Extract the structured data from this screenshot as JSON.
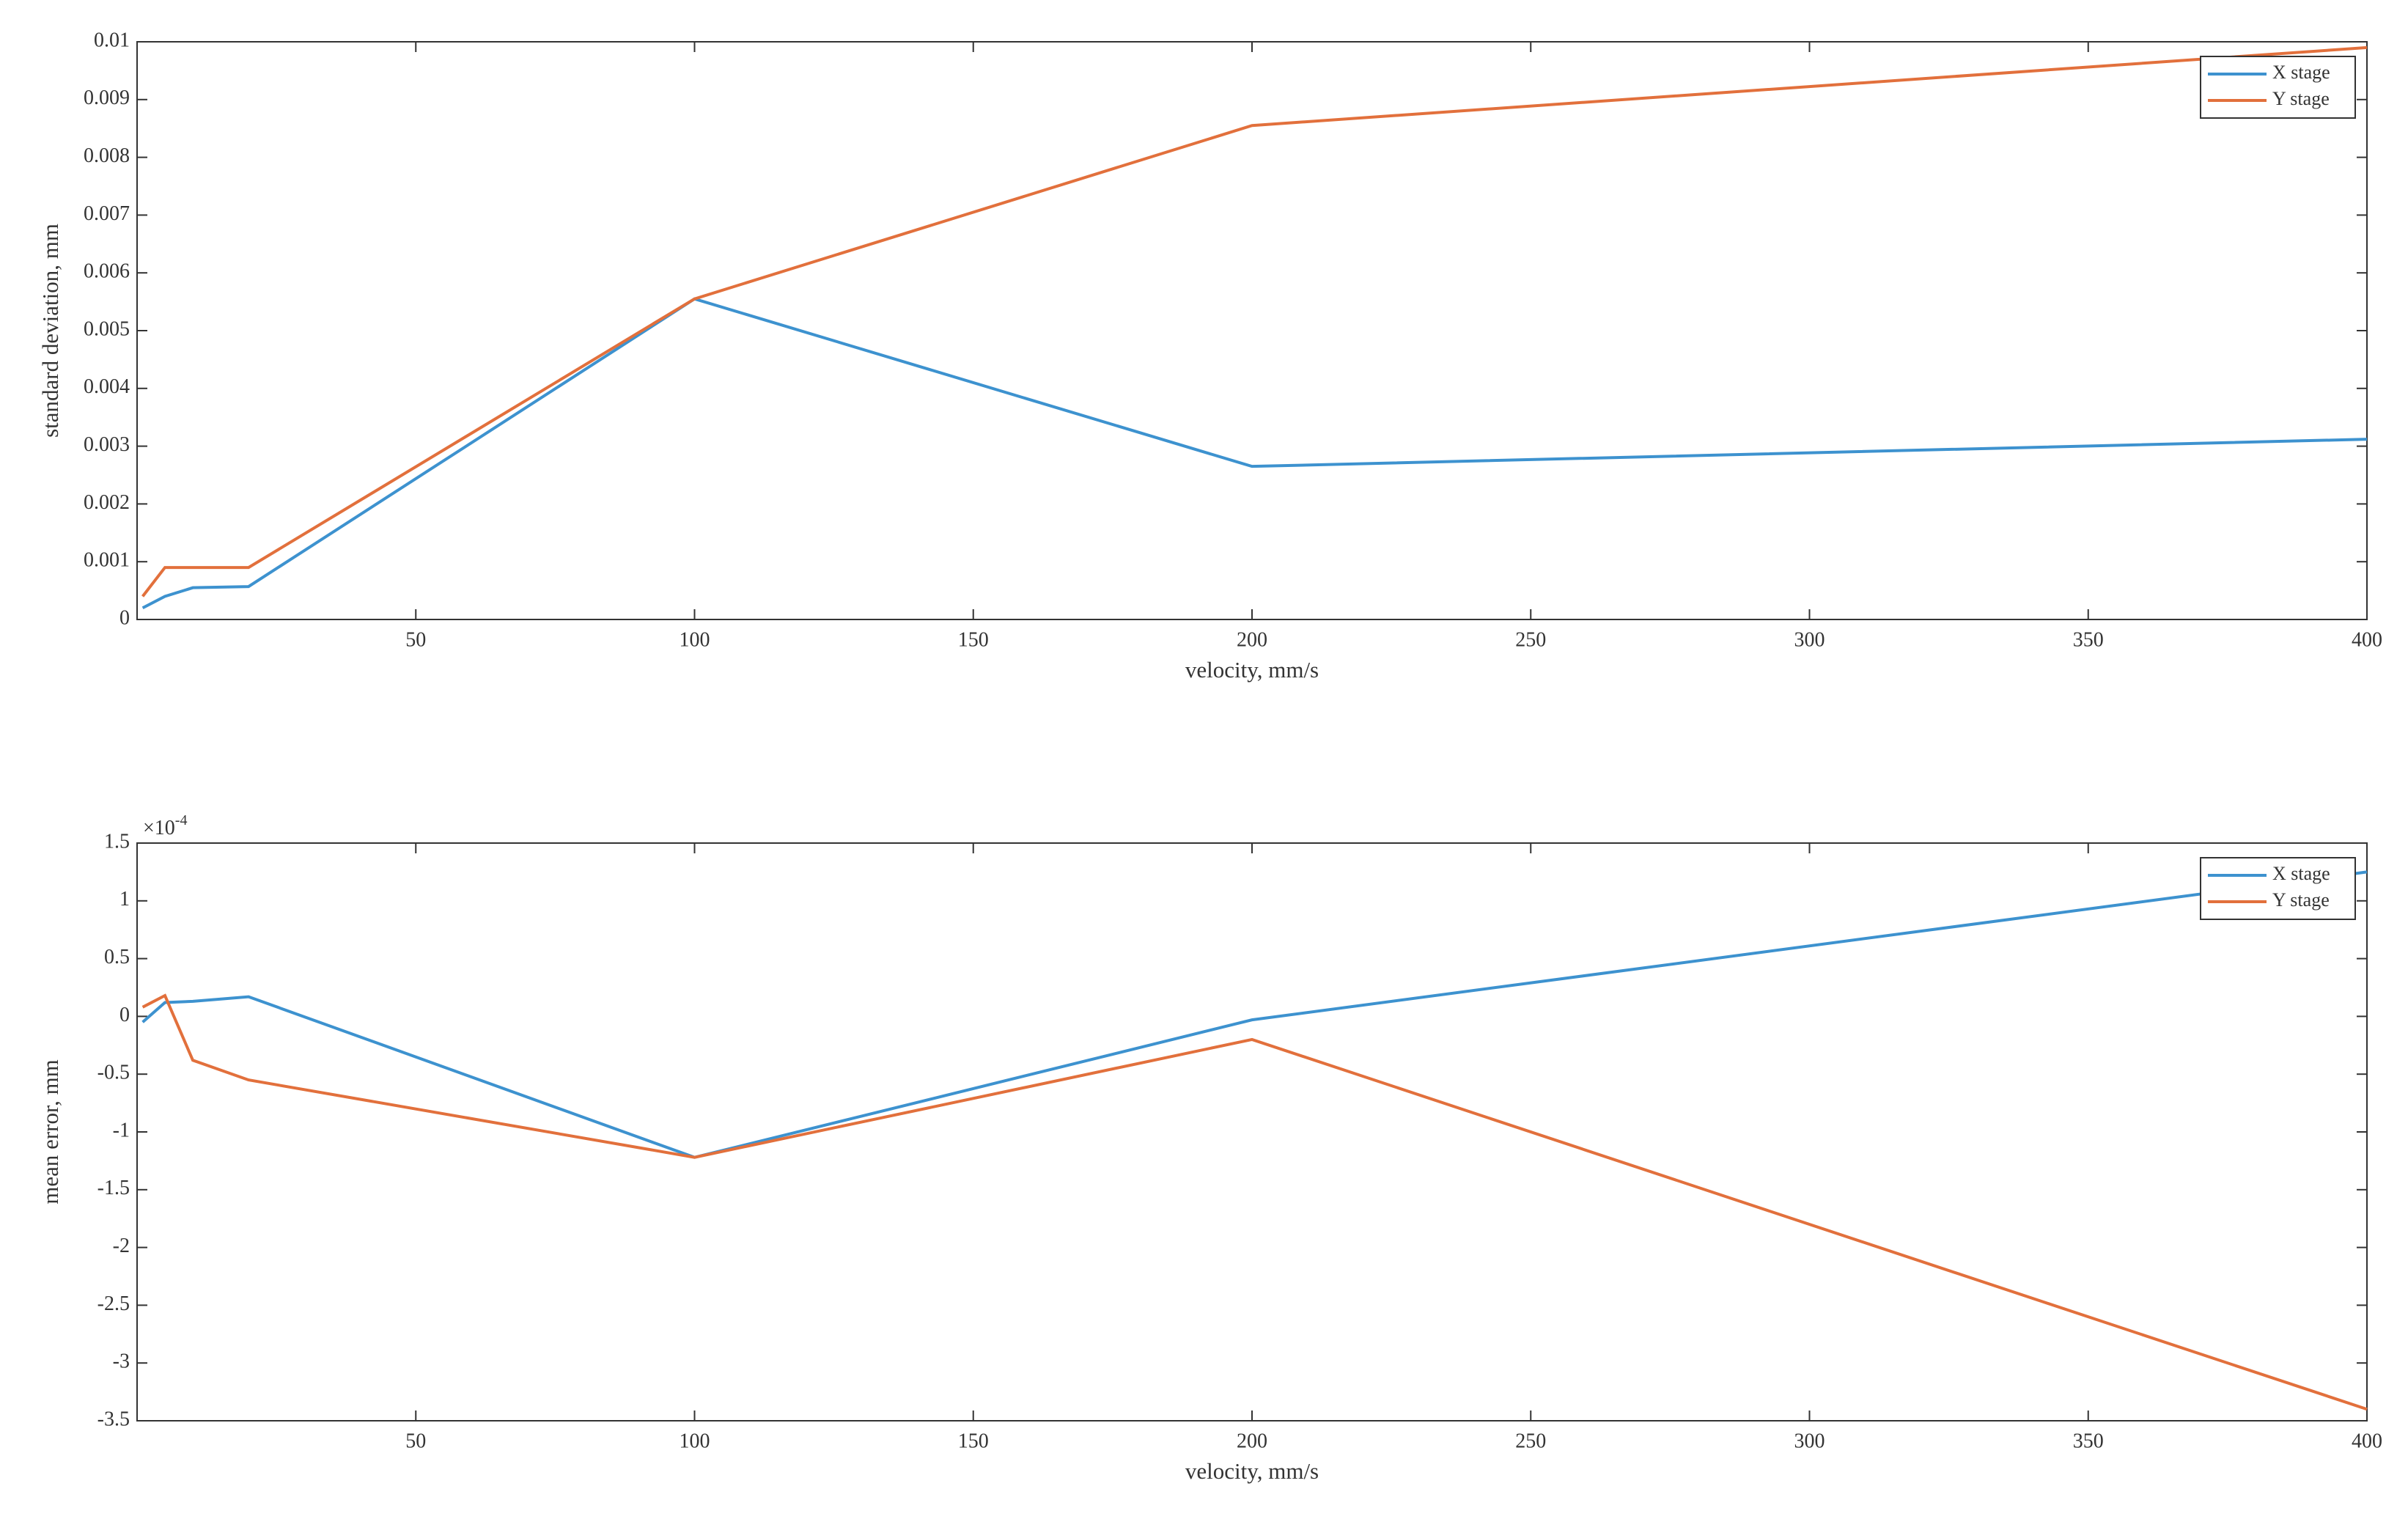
{
  "chart_data": [
    {
      "type": "line",
      "xlabel": "velocity, mm/s",
      "ylabel": "standard deviation, mm",
      "x": [
        1,
        5,
        10,
        20,
        100,
        200,
        400
      ],
      "series": [
        {
          "name": "X stage",
          "color": "#3d92cf",
          "values": [
            0.0002,
            0.0004,
            0.00055,
            0.00057,
            0.00555,
            0.00265,
            0.00312
          ]
        },
        {
          "name": "Y stage",
          "color": "#e2703c",
          "values": [
            0.0004,
            0.0009,
            0.0009,
            0.0009,
            0.00555,
            0.00855,
            0.0099
          ]
        }
      ],
      "xlim": [
        0,
        400
      ],
      "xticks": [
        50,
        100,
        150,
        200,
        250,
        300,
        350,
        400
      ],
      "ylim": [
        0,
        0.01
      ],
      "yticks": [
        0,
        0.001,
        0.002,
        0.003,
        0.004,
        0.005,
        0.006,
        0.007,
        0.008,
        0.009,
        0.01
      ],
      "legend": "northeast"
    },
    {
      "type": "line",
      "xlabel": "velocity, mm/s",
      "ylabel": "mean error, mm",
      "y_multiplier": {
        "base": "×10",
        "exponent": "-4"
      },
      "x": [
        1,
        5,
        10,
        20,
        100,
        200,
        400
      ],
      "series": [
        {
          "name": "X stage",
          "color": "#3d92cf",
          "values": [
            -0.05,
            0.12,
            0.13,
            0.17,
            -1.22,
            -0.03,
            1.25
          ]
        },
        {
          "name": "Y stage",
          "color": "#e2703c",
          "values": [
            0.08,
            0.18,
            -0.38,
            -0.55,
            -1.22,
            -0.2,
            -3.4
          ]
        }
      ],
      "xlim": [
        0,
        400
      ],
      "xticks": [
        50,
        100,
        150,
        200,
        250,
        300,
        350,
        400
      ],
      "ylim": [
        -3.5,
        1.5
      ],
      "yticks": [
        -3.5,
        -3,
        -2.5,
        -2,
        -1.5,
        -1,
        -0.5,
        0,
        0.5,
        1,
        1.5
      ],
      "legend": "northeast"
    }
  ]
}
